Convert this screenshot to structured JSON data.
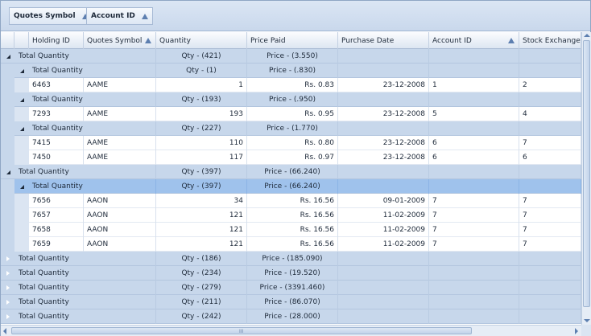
{
  "group_panel": {
    "chips": [
      {
        "label": "Quotes Symbol",
        "sort": "ascending"
      },
      {
        "label": "Account ID",
        "sort": "ascending"
      }
    ]
  },
  "columns": [
    "Holding ID",
    "Quotes Symbol",
    "Quantity",
    "Price Paid",
    "Purchase Date",
    "Account ID",
    "Stock Exchange ID"
  ],
  "sorted_columns": [
    "Quotes Symbol",
    "Account ID"
  ],
  "rows": [
    {
      "type": "group",
      "level": 0,
      "expanded": true,
      "label": "Total Quantity",
      "qty": "Qty - (421)",
      "price": "Price - (3.550)"
    },
    {
      "type": "group",
      "level": 1,
      "expanded": true,
      "label": "Total Quantity",
      "qty": "Qty - (1)",
      "price": "Price - (.830)"
    },
    {
      "type": "data",
      "holding_id": "6463",
      "symbol": "AAME",
      "quantity": "1",
      "price_paid": "Rs. 0.83",
      "purchase_date": "23-12-2008",
      "account_id": "1",
      "exchange_id": "2"
    },
    {
      "type": "group",
      "level": 1,
      "expanded": true,
      "label": "Total Quantity",
      "qty": "Qty - (193)",
      "price": "Price - (.950)"
    },
    {
      "type": "data",
      "holding_id": "7293",
      "symbol": "AAME",
      "quantity": "193",
      "price_paid": "Rs. 0.95",
      "purchase_date": "23-12-2008",
      "account_id": "5",
      "exchange_id": "4"
    },
    {
      "type": "group",
      "level": 1,
      "expanded": true,
      "label": "Total Quantity",
      "qty": "Qty - (227)",
      "price": "Price - (1.770)"
    },
    {
      "type": "data",
      "holding_id": "7415",
      "symbol": "AAME",
      "quantity": "110",
      "price_paid": "Rs. 0.80",
      "purchase_date": "23-12-2008",
      "account_id": "6",
      "exchange_id": "7"
    },
    {
      "type": "data",
      "holding_id": "7450",
      "symbol": "AAME",
      "quantity": "117",
      "price_paid": "Rs. 0.97",
      "purchase_date": "23-12-2008",
      "account_id": "6",
      "exchange_id": "6"
    },
    {
      "type": "group",
      "level": 0,
      "expanded": true,
      "label": "Total Quantity",
      "qty": "Qty - (397)",
      "price": "Price - (66.240)"
    },
    {
      "type": "group",
      "level": 1,
      "expanded": true,
      "selected": true,
      "label": "Total Quantity",
      "qty": "Qty - (397)",
      "price": "Price - (66.240)"
    },
    {
      "type": "data",
      "holding_id": "7656",
      "symbol": "AAON",
      "quantity": "34",
      "price_paid": "Rs. 16.56",
      "purchase_date": "09-01-2009",
      "account_id": "7",
      "exchange_id": "7"
    },
    {
      "type": "data",
      "holding_id": "7657",
      "symbol": "AAON",
      "quantity": "121",
      "price_paid": "Rs. 16.56",
      "purchase_date": "11-02-2009",
      "account_id": "7",
      "exchange_id": "7"
    },
    {
      "type": "data",
      "holding_id": "7658",
      "symbol": "AAON",
      "quantity": "121",
      "price_paid": "Rs. 16.56",
      "purchase_date": "11-02-2009",
      "account_id": "7",
      "exchange_id": "7"
    },
    {
      "type": "data",
      "holding_id": "7659",
      "symbol": "AAON",
      "quantity": "121",
      "price_paid": "Rs. 16.56",
      "purchase_date": "11-02-2009",
      "account_id": "7",
      "exchange_id": "7"
    },
    {
      "type": "group",
      "level": 0,
      "expanded": false,
      "label": "Total Quantity",
      "qty": "Qty - (186)",
      "price": "Price - (185.090)"
    },
    {
      "type": "group",
      "level": 0,
      "expanded": false,
      "label": "Total Quantity",
      "qty": "Qty - (234)",
      "price": "Price - (19.520)"
    },
    {
      "type": "group",
      "level": 0,
      "expanded": false,
      "label": "Total Quantity",
      "qty": "Qty - (279)",
      "price": "Price - (3391.460)"
    },
    {
      "type": "group",
      "level": 0,
      "expanded": false,
      "label": "Total Quantity",
      "qty": "Qty - (211)",
      "price": "Price - (86.070)"
    },
    {
      "type": "group",
      "level": 0,
      "expanded": false,
      "label": "Total Quantity",
      "qty": "Qty - (242)",
      "price": "Price - (28.000)"
    }
  ],
  "scrollbar_grip": "III",
  "colors": {
    "group_row": "#c7d7eb",
    "selected_row": "#9fc2ec",
    "sort_arrow": "#5d7fb0",
    "border": "#8fa6c4"
  }
}
